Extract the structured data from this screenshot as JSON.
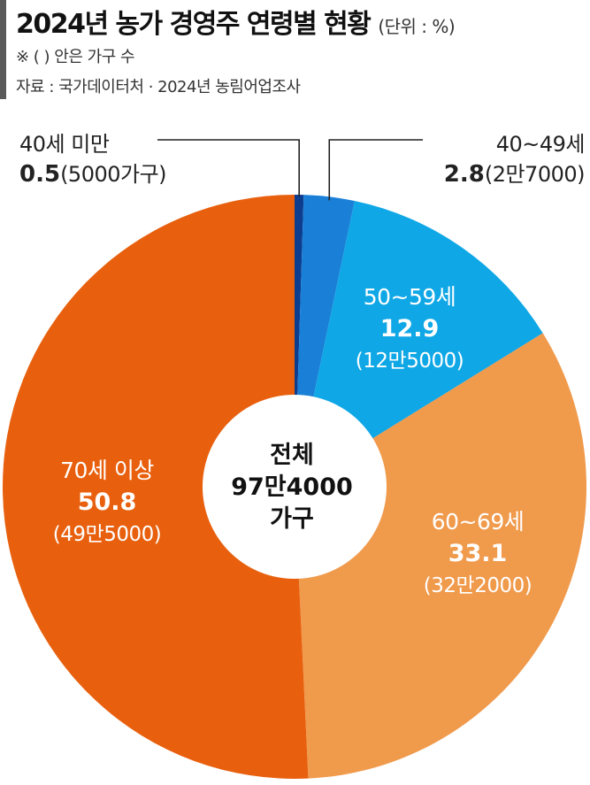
{
  "header": {
    "title": "2024년 농가 경영주 연령별 현황",
    "unit": "(단위 : %)",
    "note": "※ (  ) 안은 가구 수",
    "source": "자료 : 국가데이터처 · 2024년 농림어업조사"
  },
  "center": {
    "line1": "전체",
    "line2": "97만4000",
    "line3": "가구"
  },
  "chart_data": {
    "type": "pie",
    "slices": [
      {
        "label": "40세 미만",
        "value": 0.5,
        "value_label": "0.5",
        "households": "(5000가구)",
        "color": "#0d3d8f"
      },
      {
        "label": "40~49세",
        "value": 2.8,
        "value_label": "2.8",
        "households": "(2만7000)",
        "color": "#1a7fd6"
      },
      {
        "label": "50~59세",
        "value": 12.9,
        "value_label": "12.9",
        "households": "(12만5000)",
        "color": "#0fa7e6"
      },
      {
        "label": "60~69세",
        "value": 33.1,
        "value_label": "33.1",
        "households": "(32만2000)",
        "color": "#f09a4c"
      },
      {
        "label": "70세 이상",
        "value": 50.8,
        "value_label": "50.8",
        "households": "(49만5000)",
        "color": "#e8600e"
      }
    ]
  }
}
